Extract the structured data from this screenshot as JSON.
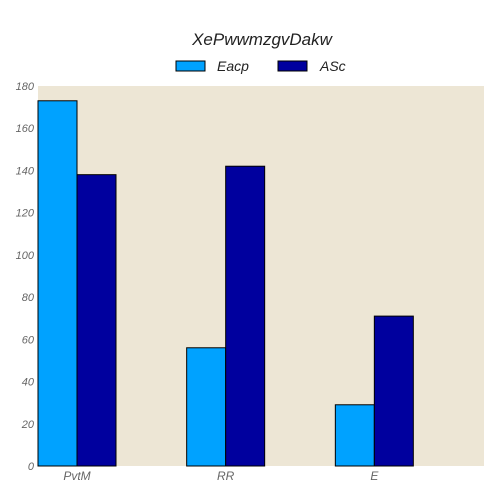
{
  "chart_data": {
    "type": "bar",
    "title": "XePwwmzgvDakw",
    "xlabel": "",
    "ylabel": "",
    "categories": [
      "PvtM",
      "RR",
      "E"
    ],
    "series": [
      {
        "name": "Eacp",
        "values": [
          173,
          56,
          29
        ],
        "color": "#00a2ff"
      },
      {
        "name": "ASc",
        "values": [
          138,
          142,
          71
        ],
        "color": "#00009e"
      }
    ],
    "ylim": [
      0,
      180
    ],
    "yticks": [
      0,
      20,
      40,
      60,
      80,
      100,
      120,
      140,
      160,
      180
    ],
    "grid": false,
    "legend_position": "top-center",
    "plot_background": "#ede6d5"
  }
}
